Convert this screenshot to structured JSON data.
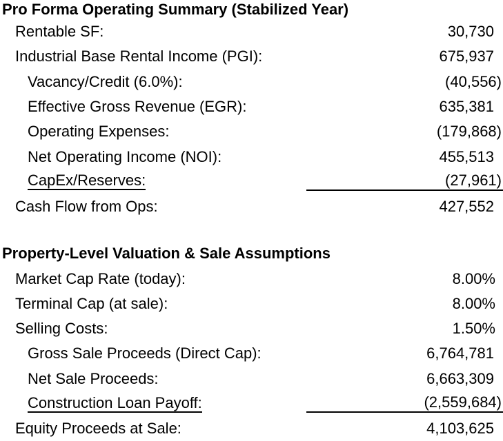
{
  "sections": [
    {
      "title": "Pro Forma Operating Summary (Stabilized Year)",
      "rows": [
        {
          "label": "Rentable SF:",
          "value": "30,730",
          "indent": 1,
          "negative": false,
          "underline": false
        },
        {
          "label": "Industrial Base Rental Income (PGI):",
          "value": "675,937",
          "indent": 1,
          "negative": false,
          "underline": false
        },
        {
          "label": "Vacancy/Credit (6.0%):",
          "value": "(40,556)",
          "indent": 2,
          "negative": true,
          "underline": false
        },
        {
          "label": "Effective Gross Revenue (EGR):",
          "value": "635,381",
          "indent": 2,
          "negative": false,
          "underline": false
        },
        {
          "label": "Operating Expenses:",
          "value": "(179,868)",
          "indent": 2,
          "negative": true,
          "underline": false
        },
        {
          "label": "Net Operating Income (NOI):",
          "value": "455,513",
          "indent": 2,
          "negative": false,
          "underline": false
        },
        {
          "label": "CapEx/Reserves:",
          "value": "(27,961)",
          "indent": 2,
          "negative": true,
          "underline": true
        },
        {
          "label": "Cash Flow from Ops:",
          "value": "427,552",
          "indent": 1,
          "negative": false,
          "underline": false
        }
      ]
    },
    {
      "title": "Property-Level Valuation & Sale Assumptions",
      "rows": [
        {
          "label": "Market Cap Rate (today):",
          "value": "8.00%",
          "indent": 1,
          "negative": false,
          "underline": false
        },
        {
          "label": "Terminal Cap (at sale):",
          "value": "8.00%",
          "indent": 1,
          "negative": false,
          "underline": false
        },
        {
          "label": "Selling Costs:",
          "value": "1.50%",
          "indent": 1,
          "negative": false,
          "underline": false
        },
        {
          "label": "Gross Sale Proceeds (Direct Cap):",
          "value": "6,764,781",
          "indent": 2,
          "negative": false,
          "underline": false
        },
        {
          "label": "Net Sale Proceeds:",
          "value": "6,663,309",
          "indent": 2,
          "negative": false,
          "underline": false
        },
        {
          "label": "Construction Loan Payoff:",
          "value": "(2,559,684)",
          "indent": 2,
          "negative": true,
          "underline": true
        },
        {
          "label": "Equity Proceeds at Sale:",
          "value": "4,103,625",
          "indent": 1,
          "negative": false,
          "underline": false
        }
      ]
    }
  ],
  "colors": {
    "text": "#000000",
    "background": "#ffffff",
    "rule": "#000000"
  }
}
